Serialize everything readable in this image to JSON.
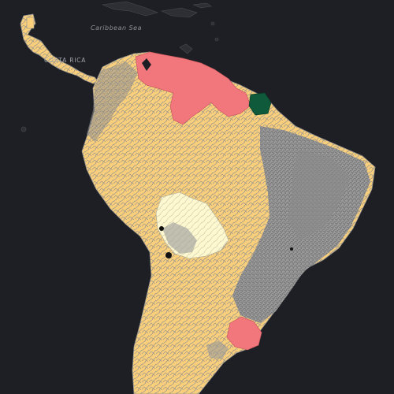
{
  "map": {
    "labels": {
      "sea": "Caribbean Sea",
      "country": "COSTA RICA"
    },
    "colors": {
      "background": "#1e1f24",
      "land_default": "#f9cf7c",
      "border_lines": "#8e8e8e",
      "highlight_red": "#f2777c",
      "highlight_light": "#fdf8cf",
      "highlight_dark_green": "#0f5a3a",
      "gray_unshaded": "#9a9a9a",
      "dark_region": "#3a3a3a"
    },
    "legend": null
  }
}
